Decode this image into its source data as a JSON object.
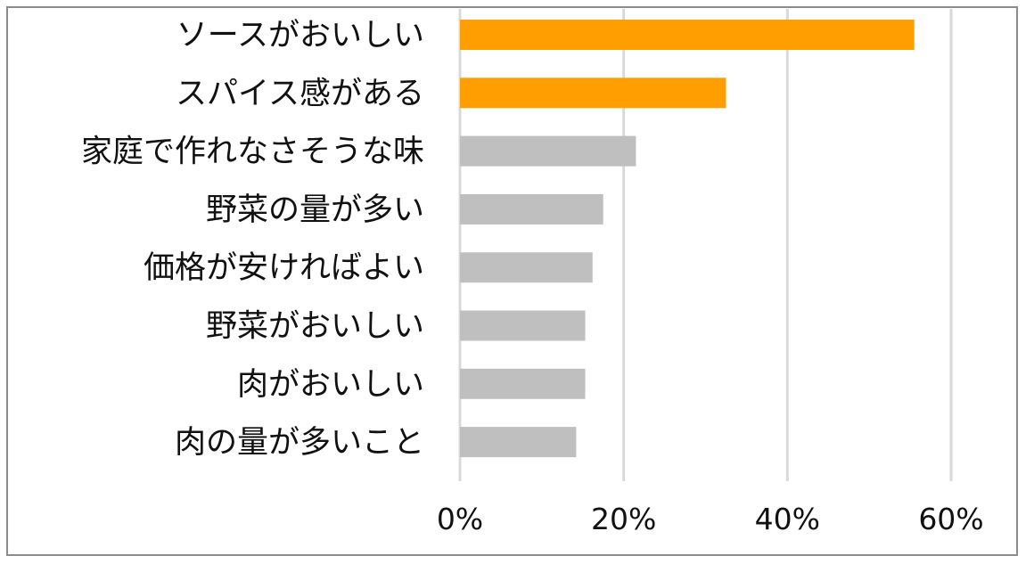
{
  "chart_data": {
    "type": "bar",
    "orientation": "horizontal",
    "categories": [
      "ソースがおいしい",
      "スパイス感がある",
      "家庭で作れなさそうな味",
      "野菜の量が多い",
      "価格が安ければよい",
      "野菜がおいしい",
      "肉がおいしい",
      "肉の量が多いこと"
    ],
    "values": [
      55.5,
      32.5,
      21.5,
      17.5,
      16.2,
      15.3,
      15.3,
      14.2
    ],
    "highlight": [
      true,
      true,
      false,
      false,
      false,
      false,
      false,
      false
    ],
    "x_ticks": [
      "0%",
      "20%",
      "40%",
      "60%"
    ],
    "tick_values": [
      0,
      20,
      40,
      60
    ],
    "xlim": [
      0,
      60
    ],
    "grid": "vertical",
    "legend": "none",
    "title": "",
    "xlabel": "",
    "ylabel": ""
  },
  "colors": {
    "highlight": "#FF9E00",
    "normal": "#BFBFBF",
    "grid": "#D9D9D9",
    "frame": "#8C8C8C",
    "text": "#111111"
  }
}
